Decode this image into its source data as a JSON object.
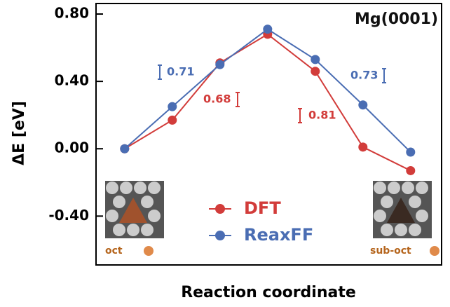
{
  "chart_data": {
    "type": "line",
    "x": [
      0,
      1,
      2,
      3,
      4,
      5,
      6
    ],
    "xlim": [
      -0.6,
      6.65
    ],
    "ylim": [
      -0.69,
      0.8625
    ],
    "yticks": [
      {
        "value": -0.4,
        "label": "-0.40"
      },
      {
        "value": 0,
        "label": "0.00"
      },
      {
        "value": 0.4,
        "label": "0.40"
      },
      {
        "value": 0.8,
        "label": "0.80"
      }
    ],
    "ylabel": "ΔE [eV]",
    "xlabel": "Reaction coordinate",
    "series": [
      {
        "name": "DFT",
        "color": "#d23c3a",
        "values": [
          0,
          0.17,
          0.51,
          0.68,
          0.46,
          0.01,
          -0.13
        ]
      },
      {
        "name": "ReaxFF",
        "color": "#4a6db3",
        "values": [
          0,
          0.25,
          0.5,
          0.71,
          0.53,
          0.26,
          -0.02
        ]
      }
    ],
    "annotations": [
      {
        "text": "Mg(0001)",
        "color": "#111111"
      },
      {
        "text": "0.71",
        "color": "#4a6db3"
      },
      {
        "text": "0.68",
        "color": "#d23c3a"
      },
      {
        "text": "0.81",
        "color": "#d23c3a"
      },
      {
        "text": "0.73",
        "color": "#4a6db3"
      },
      {
        "text": "oct",
        "color": "#b5651d"
      },
      {
        "text": "sub-oct",
        "color": "#b5651d"
      }
    ],
    "legend": "lower center"
  }
}
